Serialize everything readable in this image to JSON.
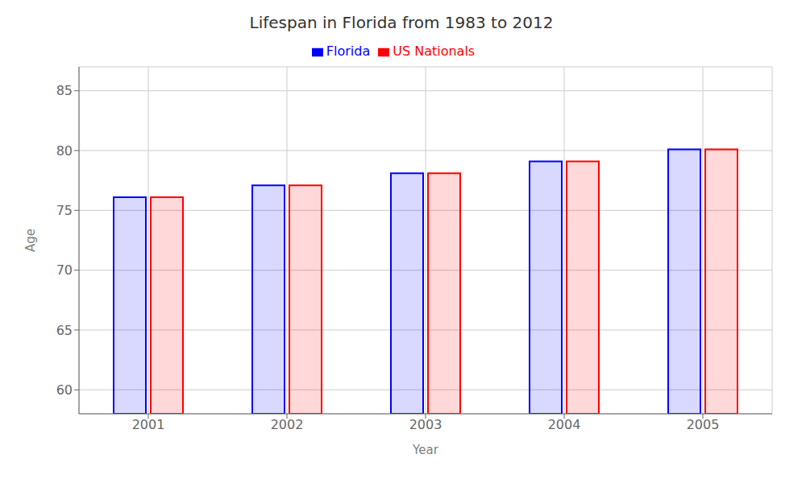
{
  "chart_data": {
    "type": "bar",
    "title": "Lifespan in Florida from 1983 to 2012",
    "xlabel": "Year",
    "ylabel": "Age",
    "categories": [
      "2001",
      "2002",
      "2003",
      "2004",
      "2005"
    ],
    "series": [
      {
        "name": "Florida",
        "color": "#0000ff",
        "values": [
          76.1,
          77.1,
          78.1,
          79.1,
          80.1
        ]
      },
      {
        "name": "US Nationals",
        "color": "#ff0000",
        "values": [
          76.1,
          77.1,
          78.1,
          79.1,
          80.1
        ]
      }
    ],
    "ylim": [
      58,
      87
    ],
    "yticks": [
      60,
      65,
      70,
      75,
      80,
      85
    ],
    "grid": true,
    "legend": "top"
  }
}
